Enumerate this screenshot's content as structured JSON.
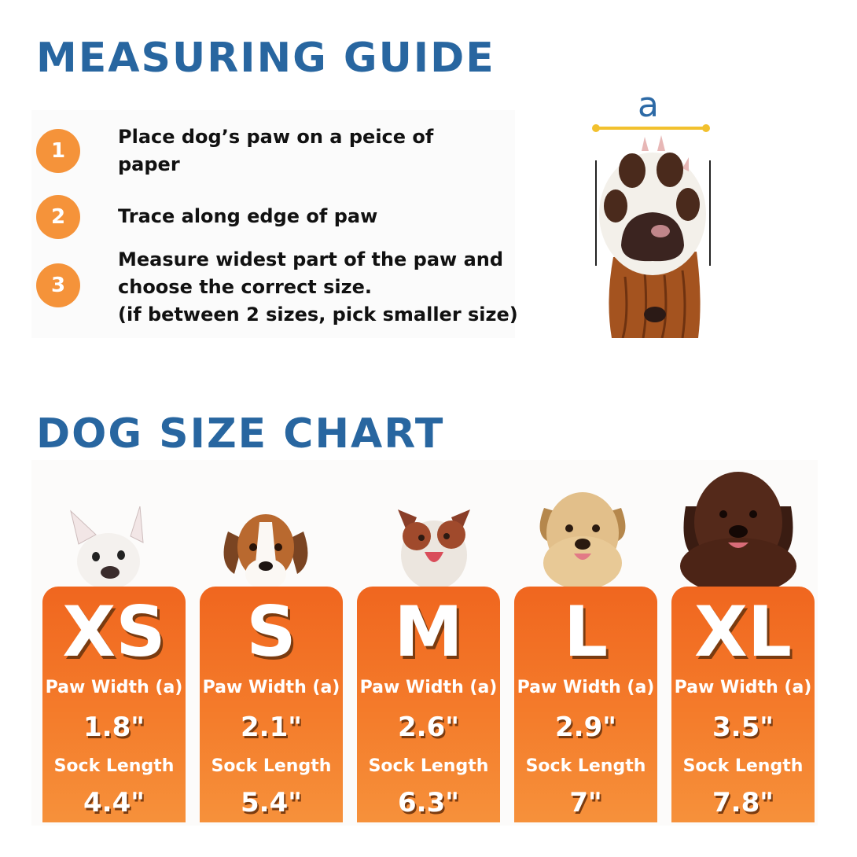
{
  "measuring_guide": {
    "title": "MEASURING GUIDE",
    "steps": [
      {
        "number": "1",
        "lines": [
          "Place dog’s paw on a peice of",
          "paper"
        ]
      },
      {
        "number": "2",
        "lines": [
          "Trace along edge of paw"
        ]
      },
      {
        "number": "3",
        "lines": [
          "Measure widest part of the paw and",
          "choose the correct size.",
          "(if between 2 sizes, pick smaller size)"
        ]
      }
    ],
    "paw_label": "a"
  },
  "size_chart": {
    "title": "DOG SIZE CHART",
    "sizes": [
      {
        "size": "XS",
        "paw_width_label": "Paw Width (a)",
        "paw_width": "1.8\"",
        "sock_length_label": "Sock Length",
        "sock_length": "4.4\""
      },
      {
        "size": "S",
        "paw_width_label": "Paw Width (a)",
        "paw_width": "2.1\"",
        "sock_length_label": "Sock Length",
        "sock_length": "5.4\""
      },
      {
        "size": "M",
        "paw_width_label": "Paw Width (a)",
        "paw_width": "2.6\"",
        "sock_length_label": "Sock Length",
        "sock_length": "6.3\""
      },
      {
        "size": "L",
        "paw_width_label": "Paw Width (a)",
        "paw_width": "2.9\"",
        "sock_length_label": "Sock Length",
        "sock_length": "7\""
      },
      {
        "size": "XL",
        "paw_width_label": "Paw Width (a)",
        "paw_width": "3.5\"",
        "sock_length_label": "Sock Length",
        "sock_length": "7.8\""
      }
    ]
  },
  "colors": {
    "heading_blue": "#2866a0",
    "step_badge": "#f5933a",
    "card_orange_top": "#f0661f",
    "card_orange_bottom": "#f6913b",
    "measure_line": "#f2c12e"
  },
  "icons": [
    "paw-illustration",
    "french-bulldog-image",
    "beagle-image",
    "australian-shepherd-image",
    "labrador-image",
    "newfoundland-image"
  ]
}
